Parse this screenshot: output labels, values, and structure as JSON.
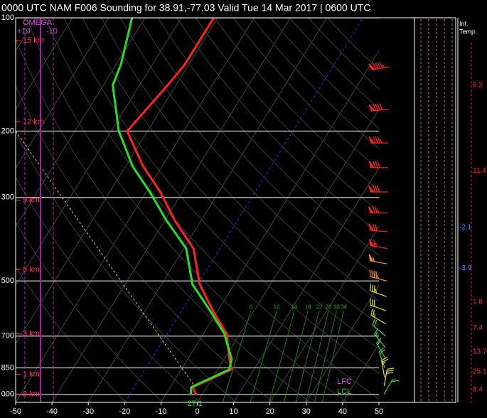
{
  "chart_data": {
    "type": "skewt",
    "title": "0000 UTC NAM F006 Sounding for 38.91,-77.03 Valid  Tue 14 Mar 2017 | 0600 UTC",
    "pressure": [
      1000,
      957,
      859,
      805,
      691,
      606,
      510,
      410,
      345,
      290,
      248,
      200,
      151,
      133,
      100
    ],
    "series": [
      {
        "name": "Temperature",
        "color": "#ff2020",
        "values": [
          -1.7,
          -3.9,
          3.8,
          1.4,
          -3.6,
          -10.8,
          -19.5,
          -27.3,
          -37.3,
          -46.1,
          -55.2,
          -65.6,
          -62.3,
          -61.1,
          -61.1
        ]
      },
      {
        "name": "Dewpoint",
        "color": "#20e020",
        "values": [
          -3.1,
          -4.3,
          3.2,
          2.0,
          -4.2,
          -11.5,
          -21.5,
          -29.3,
          -39.6,
          -49.0,
          -58.1,
          -67.9,
          -77.4,
          -78.7,
          -83.6
        ]
      }
    ],
    "xlim": [
      -50,
      50
    ],
    "xticks": [
      -50,
      -40,
      -30,
      -20,
      -10,
      0,
      10,
      20,
      30,
      40,
      50
    ],
    "ylim": [
      100,
      1050
    ],
    "yticks": [
      100,
      200,
      300,
      500,
      700,
      850,
      {
        "value": 1000,
        "label": "000"
      }
    ],
    "log_y": true,
    "grid": true,
    "heights": [
      {
        "value": 115,
        "label": "15 km"
      },
      {
        "value": 189,
        "label": "12 km"
      },
      {
        "value": 305,
        "label": "9 km"
      },
      {
        "value": 467,
        "label": "6 km"
      },
      {
        "value": 691,
        "label": "3 km"
      },
      {
        "value": 885,
        "label": "1 km"
      },
      {
        "value": 1000,
        "label": "0 km"
      }
    ],
    "omega_label": "OMEGA",
    "omega_ticks": [
      "+10",
      "-10"
    ],
    "mixing_ratio": [
      6,
      10,
      14,
      18,
      22,
      26,
      30,
      34
    ],
    "surface_label": "27.1",
    "parcel_labels": [
      "LFC",
      "LCL"
    ],
    "winds": {
      "pressure": [
        135,
        175,
        215,
        250,
        290,
        330,
        370,
        410,
        450,
        500,
        550,
        600,
        650,
        700,
        750,
        800,
        850,
        900,
        950,
        1000
      ],
      "speed": [
        95,
        90,
        85,
        80,
        80,
        75,
        70,
        65,
        55,
        45,
        35,
        30,
        25,
        20,
        15,
        15,
        20,
        25,
        30,
        15
      ],
      "direction": [
        260,
        265,
        270,
        270,
        270,
        270,
        275,
        280,
        280,
        285,
        290,
        290,
        300,
        310,
        320,
        330,
        340,
        350,
        10,
        30
      ]
    },
    "inversion_title": [
      "Inf.",
      "Temp."
    ],
    "inversion": {
      "pressure": [
        151,
        255,
        360,
        463,
        568,
        667,
        770,
        870,
        970
      ],
      "values": [
        6.2,
        11.4,
        -2.1,
        -3.9,
        1.8,
        7.4,
        13.7,
        25.1,
        8.4
      ]
    }
  }
}
